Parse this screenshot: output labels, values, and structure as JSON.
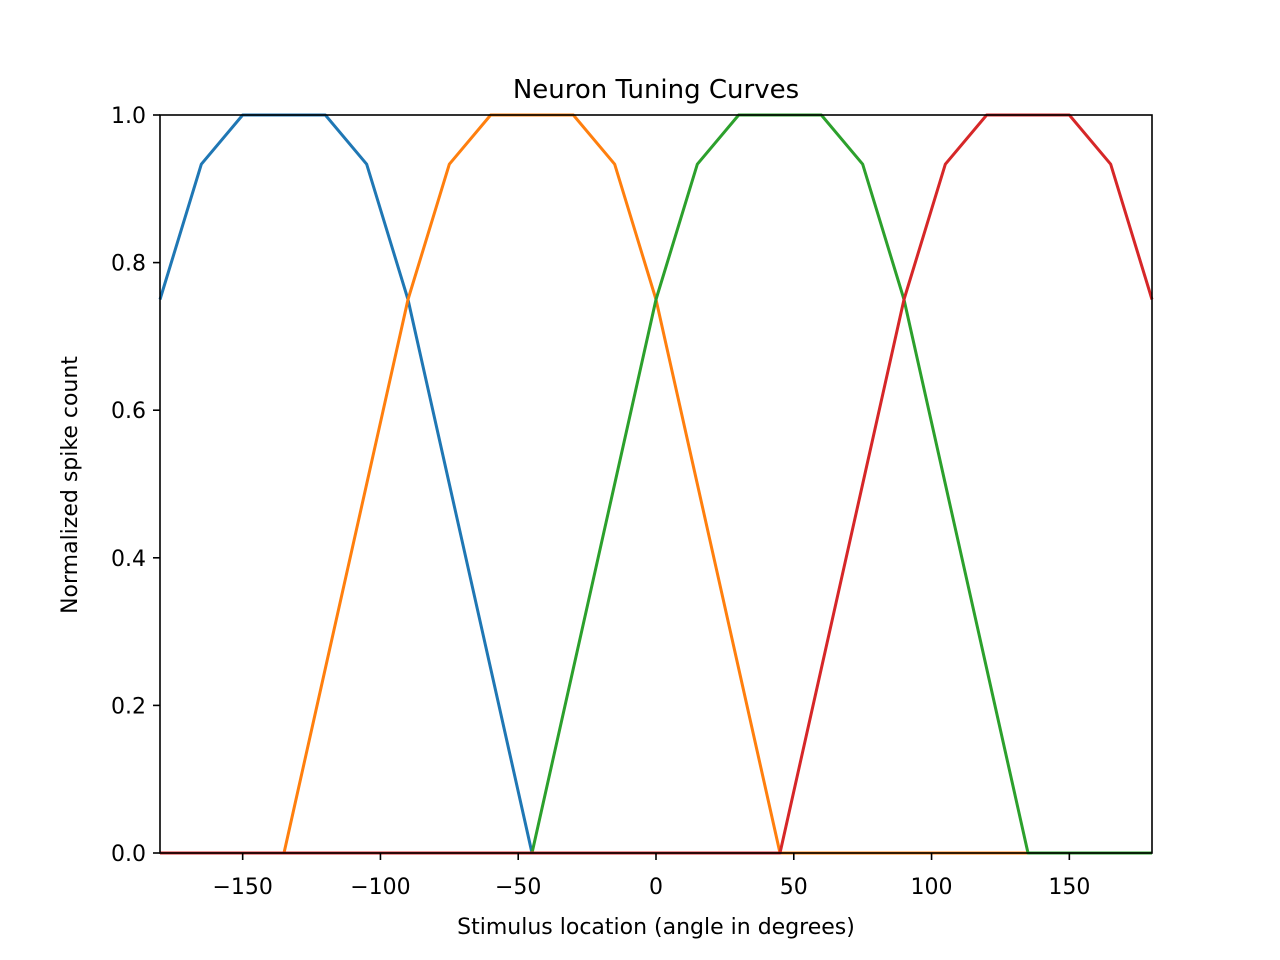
{
  "chart_data": {
    "type": "line",
    "title": "Neuron Tuning Curves",
    "xlabel": "Stimulus location (angle in degrees)",
    "ylabel": "Normalized spike count",
    "xlim": [
      -180,
      180
    ],
    "ylim": [
      0,
      1
    ],
    "xticks": [
      -150,
      -100,
      -50,
      0,
      50,
      100,
      150
    ],
    "xtick_labels": [
      "−150",
      "−100",
      "−50",
      "0",
      "50",
      "100",
      "150"
    ],
    "yticks": [
      0,
      0.2,
      0.4,
      0.6,
      0.8,
      1.0
    ],
    "ytick_labels": [
      "0.0",
      "0.2",
      "0.4",
      "0.6",
      "0.8",
      "1.0"
    ],
    "grid": false,
    "legend": false,
    "series": [
      {
        "color": "#1f77b4",
        "x": [
          -180,
          -165,
          -150,
          -135,
          -120,
          -105,
          -90,
          -75,
          -60,
          -45,
          180
        ],
        "y": [
          0.75,
          0.9333,
          1.0,
          1.0,
          1.0,
          0.9333,
          0.75,
          0.5,
          0.25,
          0,
          0
        ]
      },
      {
        "color": "#ff7f0e",
        "x": [
          -180,
          -135,
          -120,
          -105,
          -90,
          -75,
          -60,
          -45,
          -30,
          -15,
          0,
          15,
          30,
          45,
          180
        ],
        "y": [
          0,
          0,
          0.25,
          0.5,
          0.75,
          0.9333,
          1.0,
          1.0,
          1.0,
          0.9333,
          0.75,
          0.5,
          0.25,
          0,
          0
        ]
      },
      {
        "color": "#2ca02c",
        "x": [
          -180,
          -45,
          -30,
          -15,
          0,
          15,
          30,
          45,
          60,
          75,
          90,
          105,
          120,
          135,
          180
        ],
        "y": [
          0,
          0,
          0.25,
          0.5,
          0.75,
          0.9333,
          1.0,
          1.0,
          1.0,
          0.9333,
          0.75,
          0.5,
          0.25,
          0,
          0
        ]
      },
      {
        "color": "#d62728",
        "x": [
          -180,
          45,
          60,
          75,
          90,
          105,
          120,
          135,
          150,
          165,
          180
        ],
        "y": [
          0,
          0,
          0.25,
          0.5,
          0.75,
          0.9333,
          1.0,
          1.0,
          1.0,
          0.9333,
          0.75
        ]
      }
    ]
  }
}
